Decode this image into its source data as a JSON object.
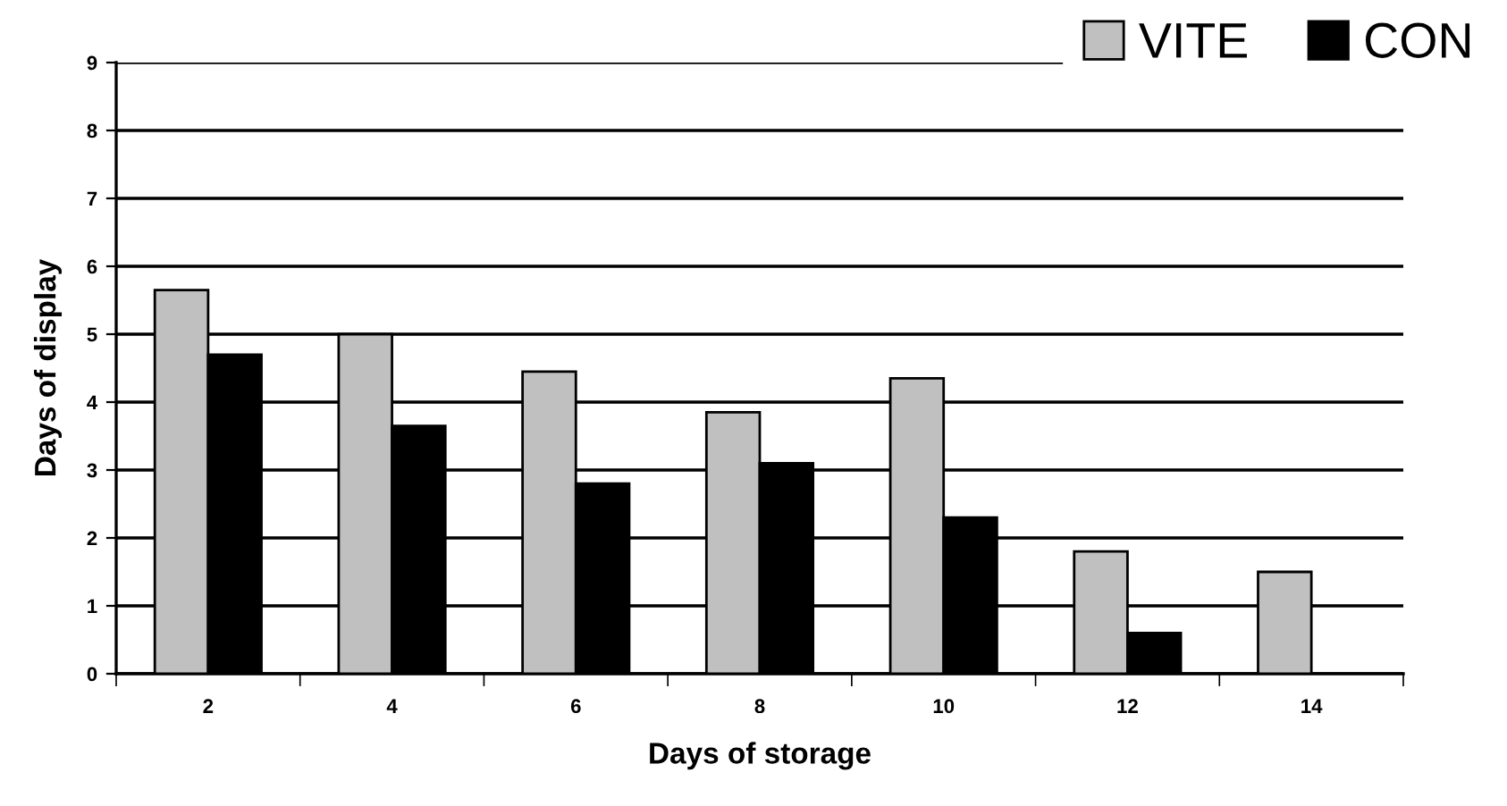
{
  "chart_data": {
    "type": "bar",
    "xlabel": "Days of storage",
    "ylabel": "Days of display",
    "categories": [
      "2",
      "4",
      "6",
      "8",
      "10",
      "12",
      "14"
    ],
    "series": [
      {
        "name": "VITE",
        "color": "#c0c0c0",
        "values": [
          5.65,
          5.0,
          4.45,
          3.85,
          4.35,
          1.8,
          1.5
        ]
      },
      {
        "name": "CON",
        "color": "#000000",
        "values": [
          4.7,
          3.65,
          2.8,
          3.1,
          2.3,
          0.6,
          null
        ]
      }
    ],
    "ylim": [
      0,
      9
    ],
    "yticks": [
      0,
      1,
      2,
      3,
      4,
      5,
      6,
      7,
      8,
      9
    ],
    "grid": "y",
    "legend": "top right"
  }
}
